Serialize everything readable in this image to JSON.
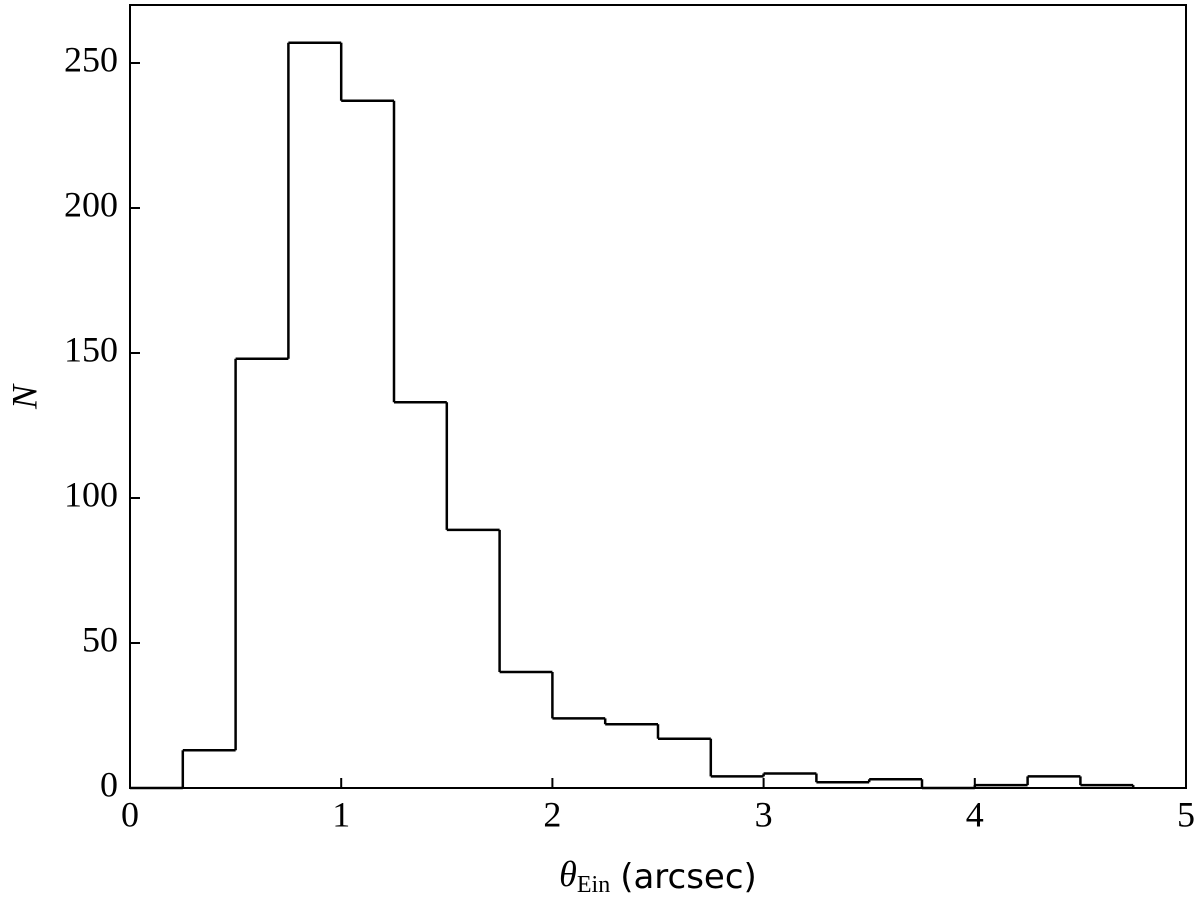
{
  "chart_data": {
    "type": "histogram",
    "xlabel": {
      "symbol": "θ",
      "subscript": "Ein",
      "unit": "(arcsec)"
    },
    "ylabel": "N",
    "bins": [
      0,
      0.25,
      0.5,
      0.75,
      1,
      1.25,
      1.5,
      1.75,
      2,
      2.25,
      2.5,
      2.75,
      3,
      3.25,
      3.5,
      3.75,
      4,
      4.25,
      4.5,
      4.75
    ],
    "values": [
      0,
      13,
      148,
      257,
      237,
      133,
      89,
      40,
      24,
      22,
      17,
      4,
      5,
      2,
      3,
      0,
      1,
      4,
      1
    ],
    "color": "#000000",
    "xlim": [
      0,
      5
    ],
    "xticks": [
      0,
      1,
      2,
      3,
      4,
      5
    ],
    "ylim": [
      0,
      270
    ],
    "yticks": [
      0,
      50,
      100,
      150,
      200,
      250
    ]
  }
}
